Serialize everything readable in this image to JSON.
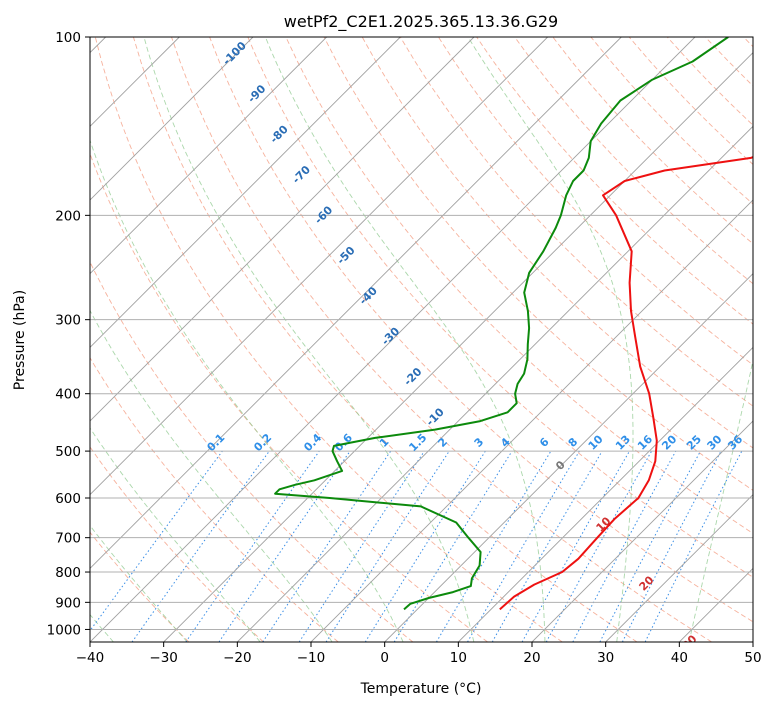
{
  "chart_data": {
    "type": "line",
    "subtype": "skew-t log-p sounding",
    "title": "wetPf2_C2E1.2025.365.13.36.G29",
    "xlabel": "Temperature (°C)",
    "ylabel": "Pressure (hPa)",
    "xlim": [
      -40,
      50
    ],
    "ylim": [
      1050,
      100
    ],
    "x_ticks": [
      -40,
      -30,
      -20,
      -10,
      0,
      10,
      20,
      30,
      40,
      50
    ],
    "x_tick_labels": [
      "−40",
      "−30",
      "−20",
      "−10",
      "0",
      "10",
      "20",
      "30",
      "40",
      "50"
    ],
    "y_ticks": [
      100,
      200,
      300,
      400,
      500,
      600,
      700,
      800,
      900,
      1000
    ],
    "y_tick_labels": [
      "100",
      "200",
      "300",
      "400",
      "500",
      "600",
      "700",
      "800",
      "900",
      "1000"
    ],
    "background_lines": {
      "isotherms": "solid grey",
      "dry_adiabats": "dashed salmon",
      "moist_adiabats": "dashed green",
      "mixing_ratio": "dotted blue"
    },
    "series": [
      {
        "name": "Temperature",
        "color": "#ee1111",
        "pressure": [
          925,
          880,
          840,
          800,
          760,
          700,
          650,
          600,
          560,
          520,
          480,
          440,
          400,
          360,
          320,
          290,
          260,
          230,
          200,
          185,
          175,
          168,
          160,
          150,
          140,
          130,
          120,
          110,
          100
        ],
        "temp": [
          11.2,
          11.4,
          12.5,
          14.6,
          15.0,
          14.7,
          14.5,
          14.9,
          13.9,
          12.2,
          9.6,
          6.1,
          2.2,
          -2.7,
          -7.5,
          -11.5,
          -15.5,
          -19.5,
          -26.5,
          -31.0,
          -30.0,
          -26.0,
          -16.0,
          -12.5,
          -10.0,
          -9.0,
          -8.5,
          -8.2,
          -8.3
        ]
      },
      {
        "name": "Dewpoint",
        "color": "#0c8a0c",
        "pressure": [
          925,
          905,
          885,
          865,
          845,
          820,
          780,
          740,
          700,
          660,
          620,
          600,
          590,
          580,
          570,
          560,
          540,
          520,
          500,
          490,
          475,
          460,
          445,
          430,
          415,
          400,
          385,
          370,
          350,
          330,
          310,
          290,
          270,
          250,
          230,
          210,
          200,
          185,
          175,
          168,
          160,
          150,
          140,
          128,
          118,
          110,
          100
        ],
        "dewpoint": [
          -1.8,
          -1.7,
          0.0,
          2.5,
          4.1,
          3.2,
          2.5,
          0.8,
          -2.8,
          -6.5,
          -13.5,
          -27.0,
          -35.0,
          -35.0,
          -33.5,
          -31.5,
          -29.0,
          -31.0,
          -33.0,
          -33.5,
          -29.0,
          -22.0,
          -17.0,
          -14.5,
          -14.5,
          -16.0,
          -17.0,
          -17.5,
          -19.0,
          -21.0,
          -23.0,
          -25.5,
          -28.5,
          -30.5,
          -31.5,
          -33.0,
          -34.0,
          -36.0,
          -37.0,
          -37.0,
          -38.0,
          -40.0,
          -41.0,
          -41.5,
          -40.0,
          -37.0,
          -35.5
        ]
      }
    ],
    "dry_adiabat_labels": [
      "-100",
      "-90",
      "-80",
      "-70",
      "-60",
      "-50",
      "-40",
      "-30",
      "-20",
      "-10"
    ],
    "moist_adiabat_labels": [
      "0",
      "10",
      "20",
      "30",
      "40"
    ],
    "mixing_ratio_labels": [
      "0.1",
      "0.2",
      "0.4",
      "0.6",
      "1",
      "1.5",
      "2",
      "3",
      "4",
      "6",
      "8",
      "10",
      "13",
      "16",
      "20",
      "25",
      "30",
      "36"
    ]
  }
}
